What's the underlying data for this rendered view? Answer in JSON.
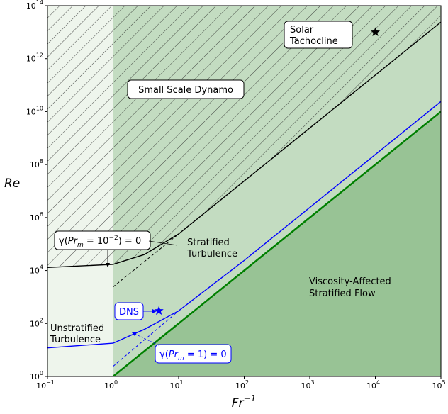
{
  "chart_data": {
    "type": "area",
    "title": "",
    "xlabel": "Fr^-1",
    "ylabel": "Re",
    "xscale": "log",
    "yscale": "log",
    "xlim": [
      0.1,
      100000
    ],
    "ylim": [
      1,
      100000000000000
    ],
    "x_ticks": [
      0.1,
      1,
      10,
      100,
      1000,
      10000,
      100000
    ],
    "y_ticks": [
      1,
      100,
      10000,
      1000000,
      100000000,
      10000000000,
      1000000000000,
      100000000000000
    ],
    "x_tick_labels": [
      {
        "base": "10",
        "exp": "−1"
      },
      {
        "base": "10",
        "exp": "0"
      },
      {
        "base": "10",
        "exp": "1"
      },
      {
        "base": "10",
        "exp": "2"
      },
      {
        "base": "10",
        "exp": "3"
      },
      {
        "base": "10",
        "exp": "4"
      },
      {
        "base": "10",
        "exp": "5"
      }
    ],
    "y_tick_labels": [
      {
        "base": "10",
        "exp": "0"
      },
      {
        "base": "10",
        "exp": "2"
      },
      {
        "base": "10",
        "exp": "4"
      },
      {
        "base": "10",
        "exp": "6"
      },
      {
        "base": "10",
        "exp": "8"
      },
      {
        "base": "10",
        "exp": "10"
      },
      {
        "base": "10",
        "exp": "12"
      },
      {
        "base": "10",
        "exp": "14"
      }
    ],
    "regions": [
      {
        "label": "Unstratified Turbulence",
        "x_range": [
          0.1,
          1
        ],
        "color": "#eef5ec"
      },
      {
        "label": "Stratified Turbulence",
        "boundary": "Re = Fr^-2",
        "color": "#c3dcc1"
      },
      {
        "label": "Viscosity-Affected Stratified Flow",
        "boundary": "Re < Fr^-2",
        "color": "#98c395"
      },
      {
        "label": "Small Scale Dynamo",
        "boundary": "above γ(Pr_m = 10^-2) = 0 curve",
        "hatch": true
      }
    ],
    "series": [
      {
        "name": "γ(Pr_m = 1) = 0",
        "color": "#0000ff",
        "x": [
          0.1,
          1,
          3,
          10,
          100,
          1000,
          10000,
          100000
        ],
        "y": [
          12,
          18,
          60,
          300,
          24000,
          2400000,
          240000000,
          24000000000
        ]
      },
      {
        "name": "γ(Pr_m = 10^-2) = 0",
        "color": "#000000",
        "x": [
          0.1,
          1,
          3,
          10,
          100,
          1000,
          10000,
          100000
        ],
        "y": [
          13000,
          17000,
          40000,
          240000,
          24000000,
          2400000000,
          240000000000,
          24000000000000
        ]
      },
      {
        "name": "Re = Fr^-2",
        "color": "#008000",
        "x": [
          1,
          100000
        ],
        "y": [
          1,
          10000000000
        ]
      }
    ],
    "points": [
      {
        "label": "DNS",
        "x": 5,
        "y": 300,
        "color": "#0000ff",
        "marker": "star"
      },
      {
        "label": "Solar Tachocline",
        "x": 10000,
        "y": 10000000000000,
        "color": "#000000",
        "marker": "star"
      }
    ],
    "annotations": {
      "small_scale_dynamo": "Small Scale Dynamo",
      "solar_line1": "Solar",
      "solar_line2": "Tachocline",
      "stratified_line1": "Stratified",
      "stratified_line2": "Turbulence",
      "unstratified_line1": "Unstratified",
      "unstratified_line2": "Turbulence",
      "viscosity_line1": "Viscosity-Affected",
      "viscosity_line2": "Stratified Flow",
      "dns": "DNS",
      "gamma_pm1_pre": "γ(",
      "gamma_pm1_Pr": "Pr",
      "gamma_pm1_sub": "m",
      "gamma_pm1_post": " = 1) = 0",
      "gamma_pm2_pre": "γ(",
      "gamma_pm2_Pr": "Pr",
      "gamma_pm2_sub": "m",
      "gamma_pm2_mid": " = 10",
      "gamma_pm2_sup": "−2",
      "gamma_pm2_post": ") = 0"
    },
    "axis_labels": {
      "x_base": "Fr",
      "x_sup": "−1",
      "y": "Re"
    },
    "grid": false,
    "legend": "none"
  }
}
